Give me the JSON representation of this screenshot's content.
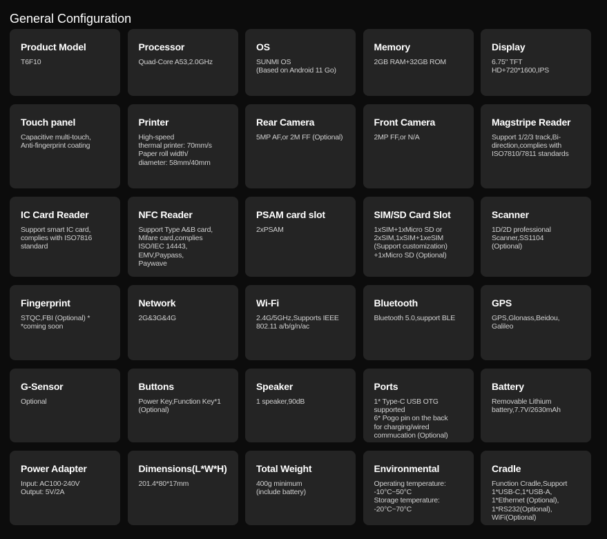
{
  "title": "General Configuration",
  "cards": [
    {
      "label": "Product Model",
      "value": "T6F10"
    },
    {
      "label": "Processor",
      "value": "Quad-Core A53,2.0GHz"
    },
    {
      "label": "OS",
      "value": "SUNMI OS\n(Based on Android 11 Go)"
    },
    {
      "label": "Memory",
      "value": "2GB RAM+32GB ROM"
    },
    {
      "label": "Display",
      "value": "6.75\" TFT\nHD+720*1600,IPS"
    },
    {
      "label": "Touch panel",
      "value": "Capacitive multi-touch,\nAnti-fingerprint coating"
    },
    {
      "label": "Printer",
      "value": "High-speed\nthermal printer: 70mm/s\nPaper roll width/\ndiameter: 58mm/40mm"
    },
    {
      "label": "Rear Camera",
      "value": "5MP AF,or 2M FF (Optional)"
    },
    {
      "label": "Front Camera",
      "value": "2MP FF,or N/A"
    },
    {
      "label": "Magstripe Reader",
      "value": "Support 1/2/3 track,Bi-\ndirection,complies with\nISO7810/7811 standards"
    },
    {
      "label": "IC Card Reader",
      "value": "Support smart IC card,\ncomplies with ISO7816\nstandard"
    },
    {
      "label": "NFC Reader",
      "value": "Support Type A&B card,\nMifare card,complies\nISO/IEC 14443,\nEMV,Paypass,\nPaywave"
    },
    {
      "label": "PSAM card slot",
      "value": "2xPSAM"
    },
    {
      "label": "SIM/SD Card Slot",
      "value": "1xSIM+1xMicro SD or\n2xSIM,1xSIM+1xeSIM\n  (Support customization)\n+1xMicro SD (Optional)"
    },
    {
      "label": "Scanner",
      "value": "1D/2D professional\nScanner,SS1104\n(Optional)"
    },
    {
      "label": "Fingerprint",
      "value": "STQC,FBI (Optional) *\n*coming soon"
    },
    {
      "label": "Network",
      "value": "2G&3G&4G"
    },
    {
      "label": "Wi-Fi",
      "value": "2.4G/5GHz,Supports IEEE\n802.11 a/b/g/n/ac"
    },
    {
      "label": "Bluetooth",
      "value": "Bluetooth 5.0,support BLE"
    },
    {
      "label": "GPS",
      "value": "GPS,Glonass,Beidou,\nGalileo"
    },
    {
      "label": "G-Sensor",
      "value": "Optional"
    },
    {
      "label": "Buttons",
      "value": "Power Key,Function Key*1\n(Optional)"
    },
    {
      "label": "Speaker",
      "value": "1 speaker,90dB"
    },
    {
      "label": "Ports",
      "value": "1* Type-C USB OTG\nsupported\n6* Pogo pin on the back\nfor charging/wired\ncommucation (Optional)"
    },
    {
      "label": "Battery",
      "value": "Removable Lithium\nbattery,7.7V/2630mAh"
    },
    {
      "label": "Power Adapter",
      "value": "Input: AC100-240V\nOutput: 5V/2A"
    },
    {
      "label": "Dimensions(L*W*H)",
      "value": "201.4*80*17mm"
    },
    {
      "label": "Total Weight",
      "value": "400g minimum\n(include battery)"
    },
    {
      "label": "Environmental",
      "value": "Operating temperature:\n-10°C~50°C\nStorage temperature:\n-20°C~70°C"
    },
    {
      "label": "Cradle",
      "value": "Function Cradle,Support\n1*USB-C,1*USB-A,\n1*Ethernet (Optional),\n1*RS232(Optional),\nWiFi(Optional)"
    }
  ]
}
